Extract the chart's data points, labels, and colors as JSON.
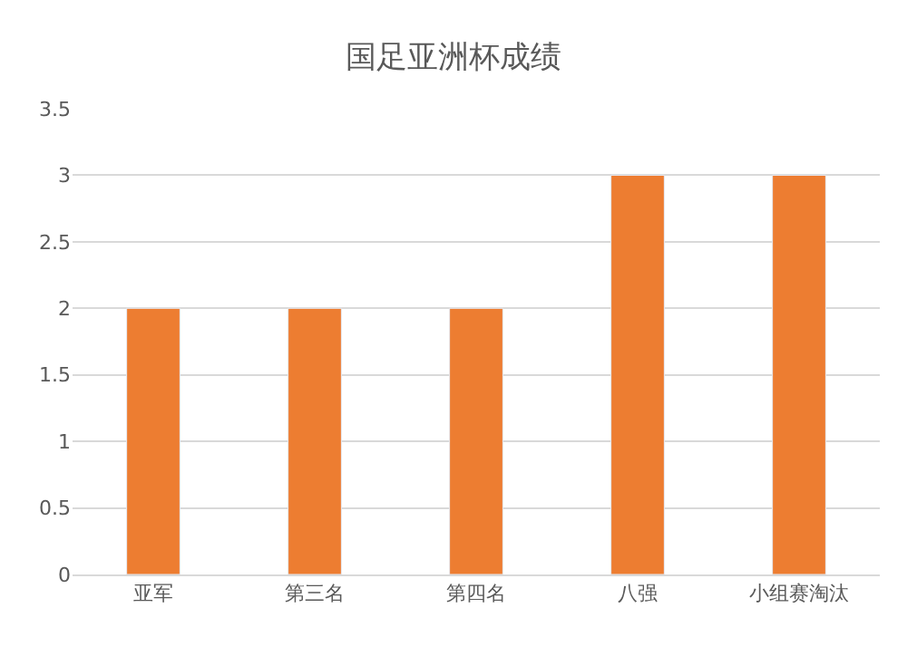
{
  "chart_data": {
    "type": "bar",
    "title": "国足亚洲杯成绩",
    "categories": [
      "亚军",
      "第三名",
      "第四名",
      "八强",
      "小组赛淘汰"
    ],
    "values": [
      2,
      2,
      2,
      3,
      3
    ],
    "color": "#ed7d31",
    "ylim": [
      0,
      3.5
    ],
    "yticks": [
      0,
      0.5,
      1,
      1.5,
      2,
      2.5,
      3,
      3.5
    ],
    "grid": "y"
  }
}
